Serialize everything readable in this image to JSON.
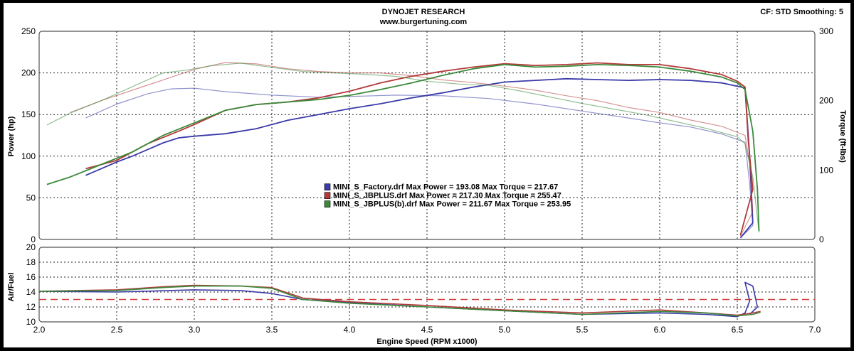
{
  "header": {
    "title": "DYNOJET RESEARCH",
    "subtitle": "www.burgertuning.com",
    "settings": "CF: STD  Smoothing: 5"
  },
  "colors": {
    "factory": "#3a3aa8",
    "jbplus": "#b33a3a",
    "jbplus_b": "#3a8a3a",
    "afr_target": "#d04040",
    "grid": "#222222"
  },
  "chart_data": [
    {
      "type": "line",
      "name": "power-torque",
      "xlabel": "",
      "ylabel": "Power (hp)",
      "y2label": "Torque (ft-lbs)",
      "xlim": [
        2.0,
        7.0
      ],
      "ylim": [
        0,
        250
      ],
      "y2lim": [
        0,
        300
      ],
      "xticks": [
        2.0,
        2.5,
        3.0,
        3.5,
        4.0,
        4.5,
        5.0,
        5.5,
        6.0,
        6.5,
        7.0
      ],
      "yticks": [
        0,
        50,
        100,
        150,
        200,
        250
      ],
      "y2ticks": [
        0,
        100,
        200,
        300
      ],
      "grid": true,
      "legend": [
        {
          "series": "factory",
          "text": "MINI_S_Factory.drf Max Power = 193.08     Max Torque = 217.67"
        },
        {
          "series": "jbplus",
          "text": "MINI_S_JBPLUS.drf Max Power = 217.30     Max Torque = 255.47"
        },
        {
          "series": "jbplus_b",
          "text": "MINI_S_JBPLUS(b).drf Max Power = 211.67     Max Torque = 253.95"
        }
      ],
      "series": [
        {
          "id": "factory",
          "kind": "power",
          "axis": "left",
          "points": [
            [
              2.3,
              77
            ],
            [
              2.4,
              85
            ],
            [
              2.5,
              93
            ],
            [
              2.6,
              100
            ],
            [
              2.7,
              108
            ],
            [
              2.8,
              116
            ],
            [
              2.9,
              122
            ],
            [
              3.0,
              124
            ],
            [
              3.2,
              127
            ],
            [
              3.4,
              133
            ],
            [
              3.6,
              143
            ],
            [
              3.8,
              150
            ],
            [
              4.0,
              157
            ],
            [
              4.2,
              163
            ],
            [
              4.4,
              170
            ],
            [
              4.6,
              176
            ],
            [
              4.8,
              183
            ],
            [
              5.0,
              189
            ],
            [
              5.2,
              191
            ],
            [
              5.4,
              193
            ],
            [
              5.6,
              192
            ],
            [
              5.8,
              191
            ],
            [
              6.0,
              192
            ],
            [
              6.2,
              191
            ],
            [
              6.4,
              188
            ],
            [
              6.55,
              182
            ],
            [
              6.58,
              100
            ],
            [
              6.6,
              20
            ],
            [
              6.52,
              2
            ]
          ]
        },
        {
          "id": "factory",
          "kind": "torque",
          "axis": "right",
          "points": [
            [
              2.3,
              175
            ],
            [
              2.4,
              185
            ],
            [
              2.5,
              195
            ],
            [
              2.7,
              210
            ],
            [
              2.85,
              217
            ],
            [
              3.0,
              218
            ],
            [
              3.2,
              213
            ],
            [
              3.5,
              208
            ],
            [
              3.8,
              205
            ],
            [
              4.0,
              206
            ],
            [
              4.3,
              208
            ],
            [
              4.6,
              207
            ],
            [
              4.9,
              203
            ],
            [
              5.2,
              195
            ],
            [
              5.5,
              185
            ],
            [
              5.8,
              175
            ],
            [
              6.0,
              168
            ],
            [
              6.2,
              162
            ],
            [
              6.4,
              152
            ],
            [
              6.55,
              140
            ],
            [
              6.58,
              80
            ],
            [
              6.6,
              20
            ],
            [
              6.52,
              2
            ]
          ]
        },
        {
          "id": "jbplus",
          "kind": "power",
          "axis": "left",
          "points": [
            [
              2.3,
              85
            ],
            [
              2.5,
              95
            ],
            [
              2.7,
              115
            ],
            [
              2.9,
              130
            ],
            [
              3.0,
              138
            ],
            [
              3.2,
              155
            ],
            [
              3.4,
              162
            ],
            [
              3.6,
              165
            ],
            [
              3.8,
              170
            ],
            [
              4.0,
              178
            ],
            [
              4.2,
              188
            ],
            [
              4.4,
              196
            ],
            [
              4.6,
              202
            ],
            [
              4.8,
              207
            ],
            [
              5.0,
              211
            ],
            [
              5.2,
              209
            ],
            [
              5.4,
              210
            ],
            [
              5.6,
              212
            ],
            [
              5.8,
              210
            ],
            [
              6.0,
              210
            ],
            [
              6.2,
              205
            ],
            [
              6.4,
              198
            ],
            [
              6.5,
              190
            ],
            [
              6.55,
              183
            ],
            [
              6.57,
              120
            ],
            [
              6.6,
              60
            ],
            [
              6.52,
              5
            ]
          ]
        },
        {
          "id": "jbplus",
          "kind": "torque",
          "axis": "right",
          "points": [
            [
              2.2,
              183
            ],
            [
              2.4,
              200
            ],
            [
              2.6,
              215
            ],
            [
              2.8,
              230
            ],
            [
              3.0,
              245
            ],
            [
              3.2,
              255
            ],
            [
              3.4,
              253
            ],
            [
              3.6,
              246
            ],
            [
              3.8,
              242
            ],
            [
              4.0,
              240
            ],
            [
              4.2,
              240
            ],
            [
              4.4,
              236
            ],
            [
              4.6,
              230
            ],
            [
              4.8,
              226
            ],
            [
              5.0,
              221
            ],
            [
              5.2,
              215
            ],
            [
              5.4,
              207
            ],
            [
              5.6,
              200
            ],
            [
              5.8,
              190
            ],
            [
              6.0,
              183
            ],
            [
              6.2,
              172
            ],
            [
              6.4,
              163
            ],
            [
              6.55,
              150
            ],
            [
              6.58,
              110
            ],
            [
              6.6,
              40
            ],
            [
              6.52,
              5
            ]
          ]
        },
        {
          "id": "jbplus_b",
          "kind": "power",
          "axis": "left",
          "points": [
            [
              2.05,
              66
            ],
            [
              2.2,
              75
            ],
            [
              2.4,
              90
            ],
            [
              2.6,
              105
            ],
            [
              2.8,
              125
            ],
            [
              3.0,
              140
            ],
            [
              3.2,
              155
            ],
            [
              3.4,
              162
            ],
            [
              3.6,
              165
            ],
            [
              3.8,
              168
            ],
            [
              4.0,
              173
            ],
            [
              4.2,
              180
            ],
            [
              4.4,
              188
            ],
            [
              4.6,
              197
            ],
            [
              4.8,
              205
            ],
            [
              5.0,
              210
            ],
            [
              5.2,
              207
            ],
            [
              5.4,
              208
            ],
            [
              5.6,
              210
            ],
            [
              5.8,
              209
            ],
            [
              6.0,
              207
            ],
            [
              6.2,
              202
            ],
            [
              6.4,
              195
            ],
            [
              6.5,
              188
            ],
            [
              6.55,
              180
            ],
            [
              6.6,
              130
            ],
            [
              6.63,
              60
            ],
            [
              6.64,
              10
            ]
          ]
        },
        {
          "id": "jbplus_b",
          "kind": "torque",
          "axis": "right",
          "points": [
            [
              2.05,
              165
            ],
            [
              2.2,
              182
            ],
            [
              2.4,
              200
            ],
            [
              2.6,
              220
            ],
            [
              2.8,
              240
            ],
            [
              2.95,
              244
            ],
            [
              3.1,
              250
            ],
            [
              3.3,
              254
            ],
            [
              3.5,
              248
            ],
            [
              3.7,
              242
            ],
            [
              3.9,
              240
            ],
            [
              4.1,
              238
            ],
            [
              4.3,
              235
            ],
            [
              4.5,
              228
            ],
            [
              4.7,
              224
            ],
            [
              4.9,
              222
            ],
            [
              5.1,
              214
            ],
            [
              5.3,
              205
            ],
            [
              5.5,
              196
            ],
            [
              5.7,
              188
            ],
            [
              5.9,
              180
            ],
            [
              6.1,
              170
            ],
            [
              6.3,
              160
            ],
            [
              6.5,
              148
            ],
            [
              6.55,
              138
            ],
            [
              6.6,
              90
            ],
            [
              6.63,
              30
            ],
            [
              6.64,
              10
            ]
          ]
        }
      ]
    },
    {
      "type": "line",
      "name": "air-fuel",
      "xlabel": "Engine Speed (RPM x1000)",
      "ylabel": "Air/Fuel",
      "xlim": [
        2.0,
        7.0
      ],
      "ylim": [
        10,
        20
      ],
      "xticks": [
        2.0,
        2.5,
        3.0,
        3.5,
        4.0,
        4.5,
        5.0,
        5.5,
        6.0,
        6.5,
        7.0
      ],
      "yticks": [
        10,
        12,
        14,
        16,
        18,
        20
      ],
      "target": 13,
      "grid": true,
      "series": [
        {
          "id": "factory",
          "points": [
            [
              2.0,
              14.1
            ],
            [
              2.5,
              14.0
            ],
            [
              3.0,
              14.3
            ],
            [
              3.3,
              14.2
            ],
            [
              3.5,
              13.8
            ],
            [
              3.7,
              13.0
            ],
            [
              4.0,
              12.6
            ],
            [
              4.5,
              12.0
            ],
            [
              5.0,
              11.5
            ],
            [
              5.5,
              11.0
            ],
            [
              6.0,
              11.2
            ],
            [
              6.3,
              11.0
            ],
            [
              6.5,
              10.7
            ],
            [
              6.55,
              11.2
            ],
            [
              6.58,
              12.8
            ],
            [
              6.55,
              15.3
            ],
            [
              6.6,
              14.8
            ],
            [
              6.63,
              12.0
            ],
            [
              6.58,
              11.0
            ]
          ]
        },
        {
          "id": "jbplus",
          "points": [
            [
              2.0,
              14.1
            ],
            [
              2.5,
              14.3
            ],
            [
              2.8,
              14.7
            ],
            [
              3.0,
              14.9
            ],
            [
              3.3,
              14.8
            ],
            [
              3.5,
              14.6
            ],
            [
              3.7,
              13.2
            ],
            [
              4.0,
              12.7
            ],
            [
              4.5,
              12.2
            ],
            [
              5.0,
              11.6
            ],
            [
              5.5,
              11.2
            ],
            [
              6.0,
              11.6
            ],
            [
              6.3,
              11.2
            ],
            [
              6.5,
              10.9
            ],
            [
              6.6,
              11.2
            ],
            [
              6.65,
              11.4
            ]
          ]
        },
        {
          "id": "jbplus_b",
          "points": [
            [
              2.0,
              14.1
            ],
            [
              2.5,
              14.2
            ],
            [
              2.8,
              14.6
            ],
            [
              3.0,
              14.8
            ],
            [
              3.3,
              14.8
            ],
            [
              3.5,
              14.5
            ],
            [
              3.7,
              13.0
            ],
            [
              4.0,
              12.5
            ],
            [
              4.5,
              12.0
            ],
            [
              5.0,
              11.5
            ],
            [
              5.5,
              11.0
            ],
            [
              6.0,
              11.4
            ],
            [
              6.3,
              11.2
            ],
            [
              6.5,
              10.8
            ],
            [
              6.6,
              11.0
            ],
            [
              6.65,
              11.3
            ]
          ]
        }
      ]
    }
  ]
}
